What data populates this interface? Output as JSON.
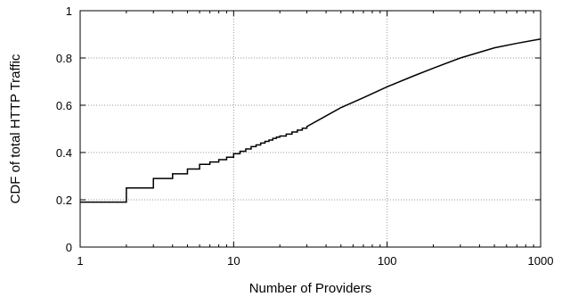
{
  "chart_data": {
    "type": "line",
    "xscale": "log",
    "xlabel": "Number of Providers",
    "ylabel": "CDF of total HTTP Traffic",
    "xlim": [
      1,
      1000
    ],
    "ylim": [
      0,
      1
    ],
    "xticks": [
      1,
      10,
      100,
      1000
    ],
    "xtick_labels": [
      "1",
      "10",
      "100",
      "1000"
    ],
    "yticks": [
      0,
      0.2,
      0.4,
      0.6,
      0.8,
      1
    ],
    "ytick_labels": [
      "0",
      "0.2",
      "0.4",
      "0.6",
      "0.8",
      "1"
    ],
    "grid": true,
    "line_color": "#000000",
    "series": [
      {
        "step": [
          [
            1,
            0.19
          ],
          [
            2,
            0.25
          ],
          [
            3,
            0.29
          ],
          [
            4,
            0.31
          ],
          [
            5,
            0.33
          ],
          [
            6,
            0.35
          ],
          [
            7,
            0.36
          ],
          [
            8,
            0.37
          ],
          [
            9,
            0.38
          ],
          [
            10,
            0.395
          ],
          [
            11,
            0.405
          ],
          [
            12,
            0.415
          ],
          [
            13,
            0.425
          ],
          [
            14,
            0.432
          ],
          [
            15,
            0.44
          ],
          [
            16,
            0.447
          ],
          [
            17,
            0.453
          ],
          [
            18,
            0.46
          ],
          [
            19,
            0.465
          ],
          [
            20,
            0.47
          ],
          [
            22,
            0.478
          ],
          [
            24,
            0.487
          ],
          [
            26,
            0.495
          ],
          [
            28,
            0.503
          ],
          [
            30,
            0.51
          ]
        ],
        "curve": [
          [
            30,
            0.51
          ],
          [
            40,
            0.555
          ],
          [
            50,
            0.59
          ],
          [
            70,
            0.632
          ],
          [
            100,
            0.678
          ],
          [
            150,
            0.725
          ],
          [
            200,
            0.757
          ],
          [
            300,
            0.8
          ],
          [
            500,
            0.843
          ],
          [
            700,
            0.862
          ],
          [
            1000,
            0.88
          ]
        ]
      }
    ]
  }
}
